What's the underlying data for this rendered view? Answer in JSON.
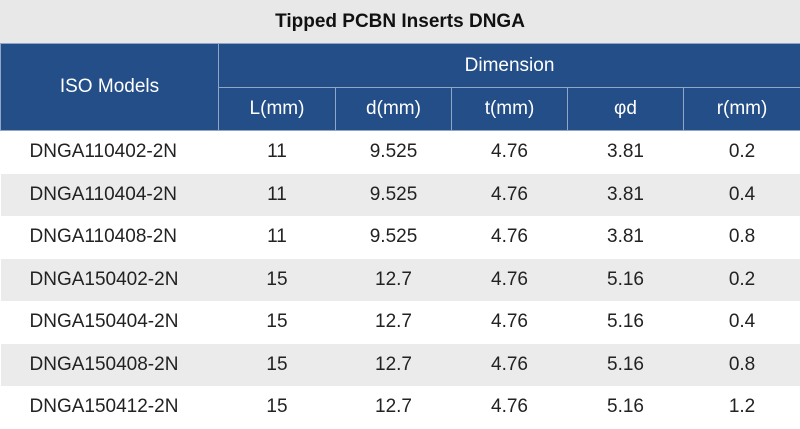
{
  "header": {
    "title": "Tipped PCBN Inserts DNGA"
  },
  "table": {
    "model_header": "ISO Models",
    "group_header": "Dimension",
    "columns": [
      "L(mm)",
      "d(mm)",
      "t(mm)",
      "φd",
      "r(mm)"
    ],
    "rows": [
      [
        "DNGA110402-2N",
        "11",
        "9.525",
        "4.76",
        "3.81",
        "0.2"
      ],
      [
        "DNGA110404-2N",
        "11",
        "9.525",
        "4.76",
        "3.81",
        "0.4"
      ],
      [
        "DNGA110408-2N",
        "11",
        "9.525",
        "4.76",
        "3.81",
        "0.8"
      ],
      [
        "DNGA150402-2N",
        "15",
        "12.7",
        "4.76",
        "5.16",
        "0.2"
      ],
      [
        "DNGA150404-2N",
        "15",
        "12.7",
        "4.76",
        "5.16",
        "0.4"
      ],
      [
        "DNGA150408-2N",
        "15",
        "12.7",
        "4.76",
        "5.16",
        "0.8"
      ],
      [
        "DNGA150412-2N",
        "15",
        "12.7",
        "4.76",
        "5.16",
        "1.2"
      ]
    ]
  }
}
